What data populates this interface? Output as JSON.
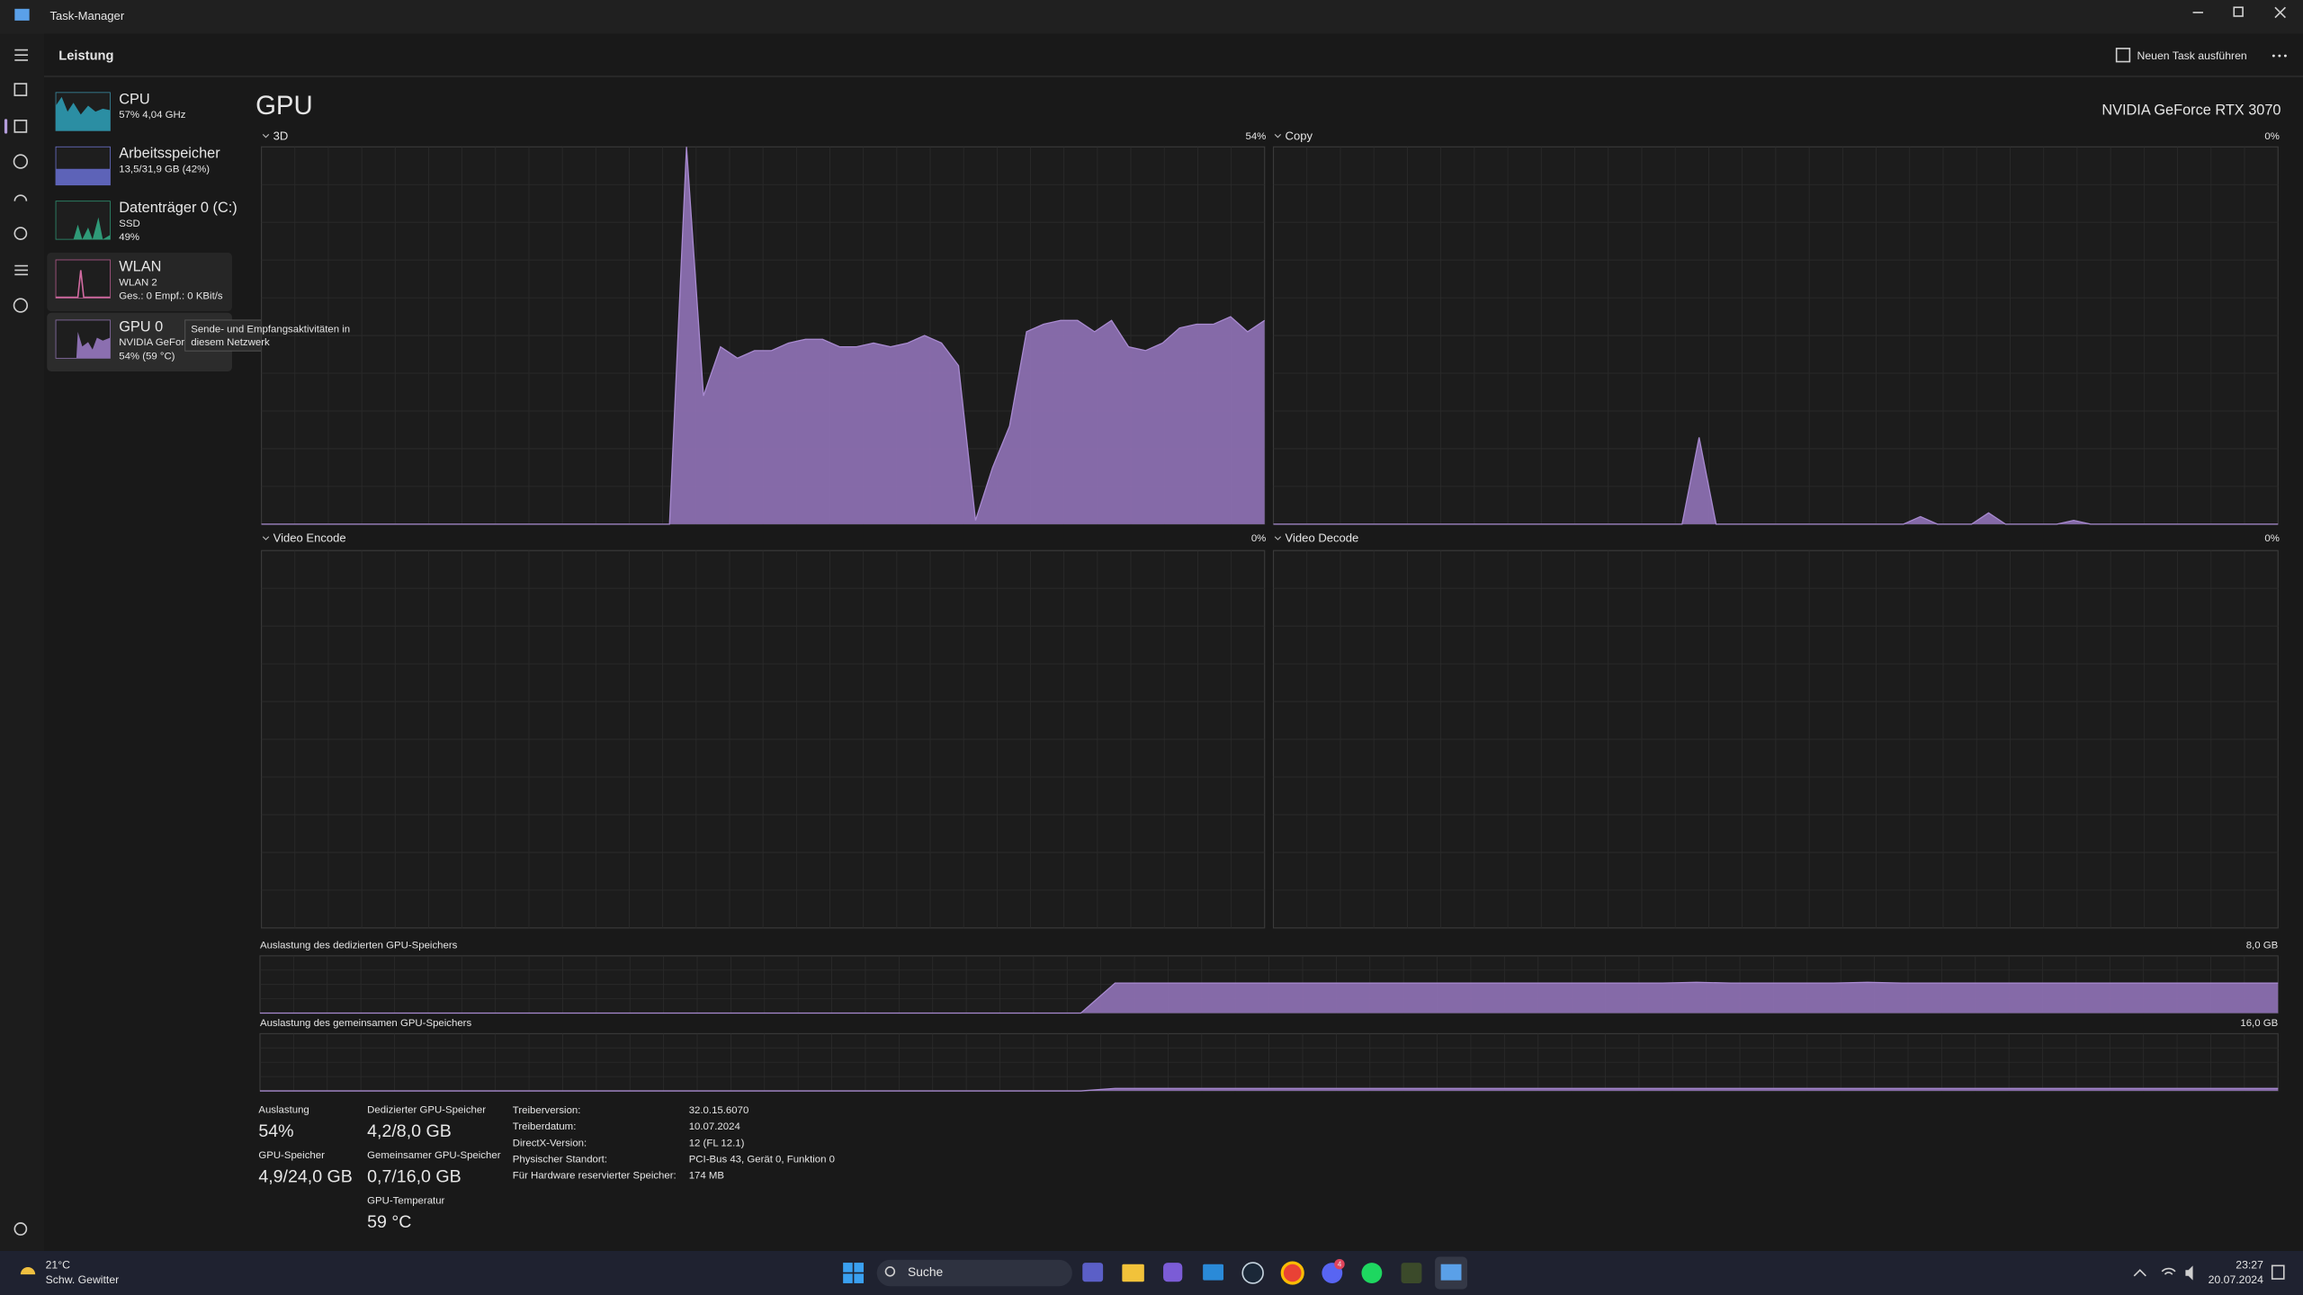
{
  "window": {
    "title": "Task-Manager"
  },
  "toolbar": {
    "page": "Leistung",
    "new_task": "Neuen Task ausführen"
  },
  "sidebar": [
    {
      "name": "CPU",
      "lines": [
        "57% 4,04 GHz"
      ]
    },
    {
      "name": "Arbeitsspeicher",
      "lines": [
        "13,5/31,9 GB (42%)"
      ]
    },
    {
      "name": "Datenträger 0 (C:)",
      "lines": [
        "SSD",
        "49%"
      ]
    },
    {
      "name": "WLAN",
      "lines": [
        "WLAN 2",
        "Ges.: 0 Empf.: 0 KBit/s"
      ]
    },
    {
      "name": "GPU 0",
      "lines": [
        "NVIDIA GeFor",
        "54% (59 °C)"
      ]
    }
  ],
  "tooltip": {
    "lines": [
      "Sende- und Empfangsaktivitäten in",
      "diesem Netzwerk"
    ]
  },
  "heading": "GPU",
  "adapter": "NVIDIA GeForce RTX 3070",
  "graphs": [
    {
      "label": "3D",
      "reading": "54%",
      "ylim": [
        0,
        100
      ],
      "values": [
        0,
        0,
        0,
        0,
        0,
        0,
        0,
        0,
        0,
        0,
        0,
        0,
        0,
        0,
        0,
        0,
        0,
        0,
        0,
        0,
        0,
        0,
        0,
        0,
        0,
        100,
        34,
        47,
        44,
        46,
        46,
        48,
        49,
        49,
        47,
        47,
        48,
        47,
        48,
        50,
        48,
        42,
        1,
        15,
        26,
        51,
        53,
        54,
        54,
        51,
        54,
        47,
        46,
        48,
        52,
        53,
        53,
        55,
        51,
        54
      ]
    },
    {
      "label": "Copy",
      "reading": "0%",
      "ylim": [
        0,
        100
      ],
      "values": [
        0,
        0,
        0,
        0,
        0,
        0,
        0,
        0,
        0,
        0,
        0,
        0,
        0,
        0,
        0,
        0,
        0,
        0,
        0,
        0,
        0,
        0,
        0,
        0,
        0,
        23,
        0,
        0,
        0,
        0,
        0,
        0,
        0,
        0,
        0,
        0,
        0,
        0,
        2,
        0,
        0,
        0,
        3,
        0,
        0,
        0,
        0,
        1,
        0,
        0,
        0,
        0,
        0,
        0,
        0,
        0,
        0,
        0,
        0,
        0
      ]
    },
    {
      "label": "Video Encode",
      "reading": "0%"
    },
    {
      "label": "Video Decode",
      "reading": "0%"
    }
  ],
  "memory_graphs": [
    {
      "label": "Auslastung des dedizierten GPU-Speichers",
      "max_label": "8,0 GB",
      "ylim": [
        0,
        8
      ],
      "values": [
        0,
        0,
        0,
        0,
        0,
        0,
        0,
        0,
        0,
        0,
        0,
        0,
        0,
        0,
        0,
        0,
        0,
        0,
        0,
        0,
        0,
        0,
        0,
        0,
        0,
        4.2,
        4.2,
        4.2,
        4.2,
        4.2,
        4.2,
        4.2,
        4.2,
        4.2,
        4.2,
        4.2,
        4.2,
        4.2,
        4.2,
        4.2,
        4.2,
        4.2,
        4.3,
        4.2,
        4.2,
        4.2,
        4.2,
        4.3,
        4.2,
        4.2,
        4.2,
        4.2,
        4.2,
        4.2,
        4.2,
        4.2,
        4.2,
        4.2,
        4.2,
        4.2
      ]
    },
    {
      "label": "Auslastung des gemeinsamen GPU-Speichers",
      "max_label": "16,0 GB",
      "ylim": [
        0,
        16
      ],
      "values": [
        0,
        0,
        0,
        0,
        0,
        0,
        0,
        0,
        0,
        0,
        0,
        0,
        0,
        0,
        0,
        0,
        0,
        0,
        0,
        0,
        0,
        0,
        0,
        0,
        0,
        0.7,
        0.7,
        0.7,
        0.7,
        0.7,
        0.7,
        0.7,
        0.7,
        0.7,
        0.7,
        0.7,
        0.7,
        0.7,
        0.7,
        0.7,
        0.7,
        0.7,
        0.7,
        0.7,
        0.7,
        0.7,
        0.7,
        0.7,
        0.7,
        0.7,
        0.7,
        0.7,
        0.7,
        0.7,
        0.7,
        0.7,
        0.7,
        0.7,
        0.7,
        0.7
      ]
    }
  ],
  "stats": [
    {
      "label": "Auslastung",
      "value": "54%"
    },
    {
      "label": "GPU-Speicher",
      "value": "4,9/24,0 GB"
    },
    {
      "label": "Dedizierter GPU-Speicher",
      "value": "4,2/8,0 GB"
    },
    {
      "label": "Gemeinsamer GPU-Speicher",
      "value": "0,7/16,0 GB"
    },
    {
      "label": "GPU-Temperatur",
      "value": "59 °C"
    }
  ],
  "details": [
    [
      "Treiberversion:",
      "32.0.15.6070"
    ],
    [
      "Treiberdatum:",
      "10.07.2024"
    ],
    [
      "DirectX-Version:",
      "12 (FL 12.1)"
    ],
    [
      "Physischer Standort:",
      "PCI-Bus 43, Gerät 0, Funktion 0"
    ],
    [
      "Für Hardware reservierter Speicher:",
      "174 MB"
    ]
  ],
  "taskbar": {
    "weather_temp": "21°C",
    "weather_desc": "Schw. Gewitter",
    "search": "Suche",
    "badge": "4",
    "time": "23:27",
    "date": "20.07.2024"
  }
}
